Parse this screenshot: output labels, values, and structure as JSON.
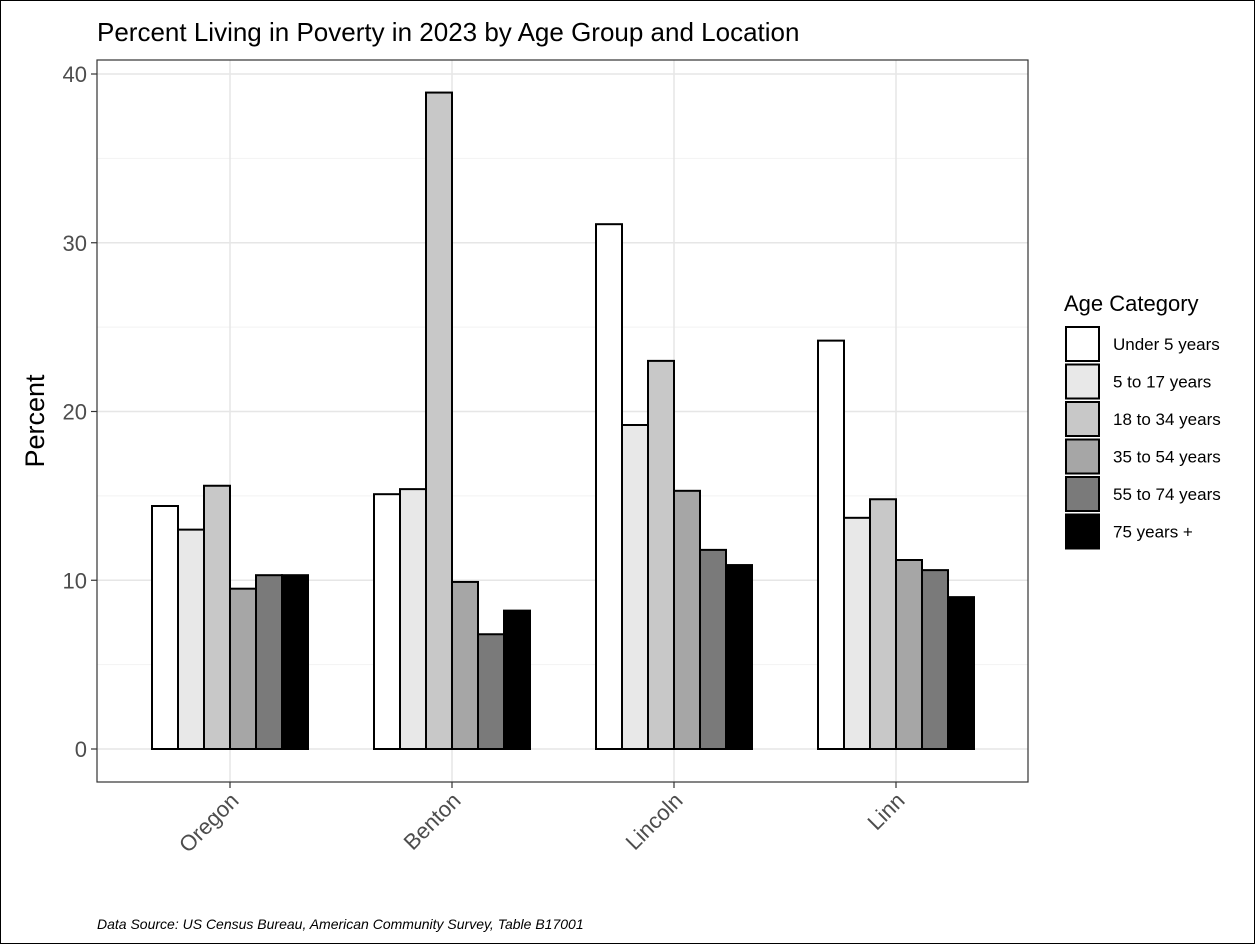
{
  "chart_data": {
    "type": "bar",
    "title": "Percent Living in Poverty in 2023 by Age Group and Location",
    "xlabel": "",
    "ylabel": "Percent",
    "ylim": [
      0,
      40
    ],
    "yticks": [
      0,
      10,
      20,
      30,
      40
    ],
    "grid": true,
    "categories": [
      "Oregon",
      "Benton",
      "Lincoln",
      "Linn"
    ],
    "series": [
      {
        "name": "Under 5 years",
        "color": "#ffffff",
        "values": [
          14.4,
          15.1,
          31.1,
          24.2
        ]
      },
      {
        "name": "5 to 17 years",
        "color": "#e8e8e8",
        "values": [
          13.0,
          15.4,
          19.2,
          13.7
        ]
      },
      {
        "name": "18 to 34 years",
        "color": "#c8c8c8",
        "values": [
          15.6,
          38.9,
          23.0,
          14.8
        ]
      },
      {
        "name": "35 to 54 years",
        "color": "#a6a6a6",
        "values": [
          9.5,
          9.9,
          15.3,
          11.2
        ]
      },
      {
        "name": "55 to 74 years",
        "color": "#7a7a7a",
        "values": [
          10.3,
          6.8,
          11.8,
          10.6
        ]
      },
      {
        "name": "75 years +",
        "color": "#000000",
        "values": [
          10.3,
          8.2,
          10.9,
          9.0
        ]
      }
    ],
    "legend": {
      "title": "Age Category",
      "placement": "right"
    },
    "caption": "Data Source: US Census Bureau, American Community Survey, Table B17001"
  }
}
